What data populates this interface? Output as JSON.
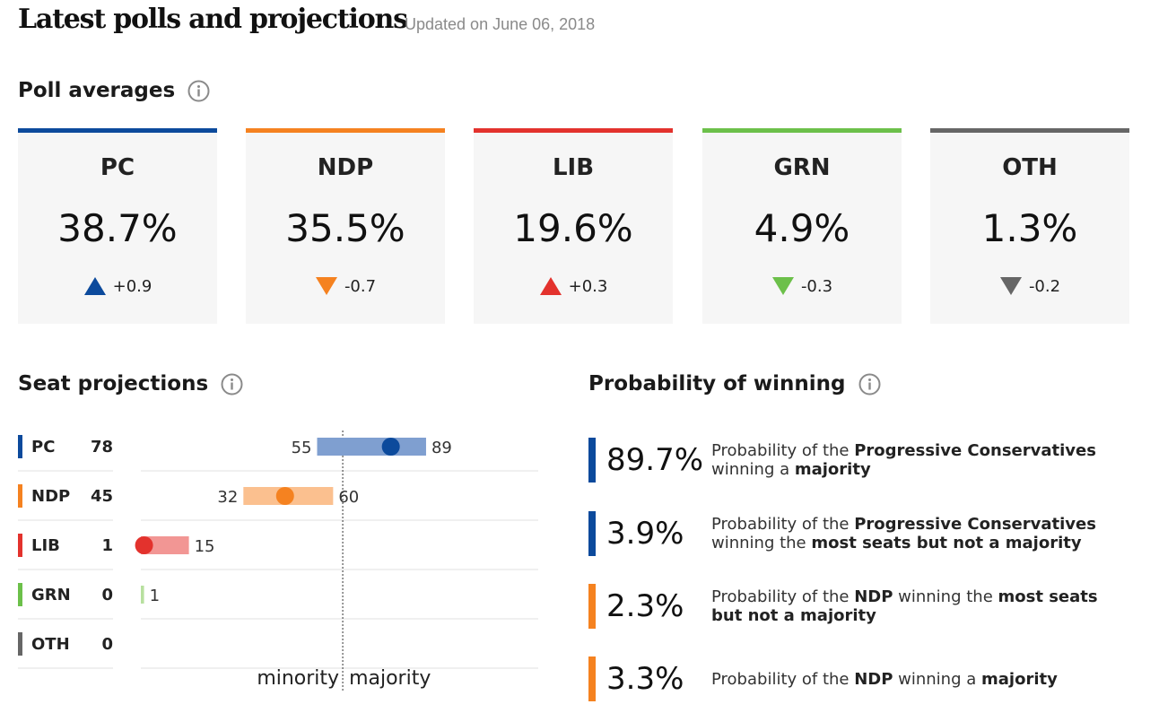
{
  "header": {
    "title": "Latest polls and projections",
    "updated": "Updated on June 06, 2018"
  },
  "sections": {
    "poll_averages": "Poll averages",
    "seat_projections": "Seat projections",
    "probability": "Probability of winning"
  },
  "icons": {
    "info": "info-circle-icon",
    "up": "triangle-up-icon",
    "down": "triangle-down-icon"
  },
  "poll_cards": [
    {
      "abbr": "PC",
      "value": "38.7%",
      "change": "+0.9",
      "direction": "up",
      "color": "#0c4a9c"
    },
    {
      "abbr": "NDP",
      "value": "35.5%",
      "change": "-0.7",
      "direction": "down",
      "color": "#f58220"
    },
    {
      "abbr": "LIB",
      "value": "19.6%",
      "change": "+0.3",
      "direction": "up",
      "color": "#e3322d"
    },
    {
      "abbr": "GRN",
      "value": "4.9%",
      "change": "-0.3",
      "direction": "down",
      "color": "#6cc04a"
    },
    {
      "abbr": "OTH",
      "value": "1.3%",
      "change": "-0.2",
      "direction": "down",
      "color": "#666666"
    }
  ],
  "chart_data": {
    "type": "range-dot",
    "title": "Seat projections",
    "categories": [
      "PC",
      "NDP",
      "LIB",
      "GRN",
      "OTH"
    ],
    "series": [
      {
        "name": "projected",
        "values": [
          78,
          45,
          1,
          0,
          0
        ]
      },
      {
        "name": "low",
        "values": [
          55,
          32,
          null,
          null,
          null
        ]
      },
      {
        "name": "high",
        "values": [
          89,
          60,
          15,
          1,
          null
        ]
      }
    ],
    "colors": [
      "#0c4a9c",
      "#f58220",
      "#e3322d",
      "#6cc04a",
      "#666666"
    ],
    "range_colors": [
      "#7f9fd0",
      "#fbc08f",
      "#f29694",
      "#b8e09f",
      "#b0b0b0"
    ],
    "majority_line": 63,
    "axis_labels": {
      "left": "minority",
      "right": "majority"
    },
    "xlim": [
      0,
      124
    ]
  },
  "probabilities": [
    {
      "pct": "89.7%",
      "color": "#0c4a9c",
      "parts": [
        {
          "t": "Probability of the "
        },
        {
          "t": "Progressive Conservatives",
          "b": true
        },
        {
          "t": " winning a "
        },
        {
          "t": "majority",
          "b": true
        }
      ]
    },
    {
      "pct": "3.9%",
      "color": "#0c4a9c",
      "parts": [
        {
          "t": "Probability of the "
        },
        {
          "t": "Progressive Conservatives",
          "b": true
        },
        {
          "t": " winning the "
        },
        {
          "t": "most seats but not a majority",
          "b": true
        }
      ]
    },
    {
      "pct": "2.3%",
      "color": "#f58220",
      "parts": [
        {
          "t": "Probability of the "
        },
        {
          "t": "NDP",
          "b": true
        },
        {
          "t": " winning the "
        },
        {
          "t": "most seats but not a majority",
          "b": true
        }
      ]
    },
    {
      "pct": "3.3%",
      "color": "#f58220",
      "parts": [
        {
          "t": "Probability of the "
        },
        {
          "t": "NDP",
          "b": true
        },
        {
          "t": " winning a "
        },
        {
          "t": "majority",
          "b": true
        }
      ]
    }
  ]
}
